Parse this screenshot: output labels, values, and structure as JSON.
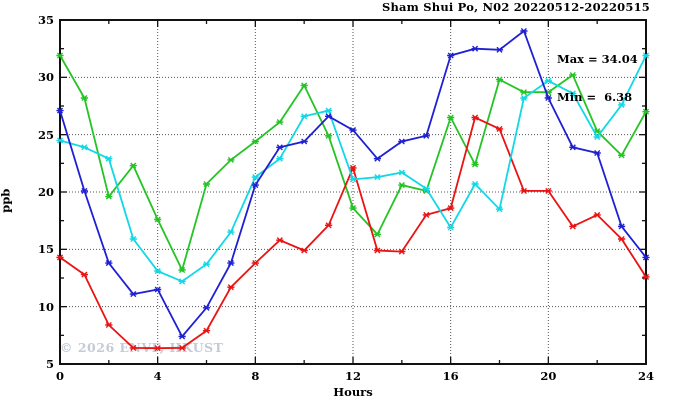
{
  "title": "Sham Shui Po, N02 20220512-20220515",
  "stats": {
    "max_label": "Max = 34.04",
    "min_label": "Min =  6.38"
  },
  "watermark": "© 2026 ENVF, HKUST",
  "axes": {
    "ylabel": "ppb",
    "xlabel": "Hours"
  },
  "chart_data": {
    "type": "line",
    "title": "Sham Shui Po, N02 20220512-20220515",
    "xlabel": "Hours",
    "ylabel": "ppb",
    "xlim": [
      0,
      24
    ],
    "ylim": [
      5,
      35
    ],
    "xticks_major": [
      0,
      4,
      8,
      12,
      16,
      20,
      24
    ],
    "xticks_minor": [
      2,
      6,
      10,
      14,
      18,
      22
    ],
    "yticks_major": [
      5,
      10,
      15,
      20,
      25,
      30,
      35
    ],
    "yticks_minor": [
      7.5,
      12.5,
      17.5,
      22.5,
      27.5,
      32.5
    ],
    "grid_x": [
      4,
      8,
      12,
      16,
      20
    ],
    "grid_y": [
      10,
      15,
      20,
      25,
      30
    ],
    "grid": true,
    "legend_position": "none",
    "max": 34.04,
    "min": 6.38,
    "x": [
      0,
      1,
      2,
      3,
      4,
      5,
      6,
      7,
      8,
      9,
      10,
      11,
      12,
      13,
      14,
      15,
      16,
      17,
      18,
      19,
      20,
      21,
      22,
      23,
      24
    ],
    "series": [
      {
        "name": "green",
        "color": "#24c424",
        "values": [
          31.9,
          28.2,
          19.6,
          22.3,
          17.6,
          13.2,
          20.7,
          22.8,
          24.4,
          26.1,
          29.3,
          24.9,
          18.6,
          16.3,
          20.6,
          20.1,
          26.5,
          22.4,
          29.8,
          28.7,
          28.7,
          30.2,
          25.3,
          23.2,
          27.0
        ]
      },
      {
        "name": "red",
        "color": "#ea1212",
        "values": [
          14.3,
          12.8,
          8.4,
          6.4,
          6.38,
          6.4,
          7.9,
          11.7,
          13.8,
          15.8,
          14.9,
          17.1,
          22.1,
          14.9,
          14.8,
          18.0,
          18.6,
          26.5,
          25.5,
          20.1,
          20.1,
          17.0,
          18.0,
          15.9,
          12.6
        ]
      },
      {
        "name": "cyan",
        "color": "#12d8e6",
        "values": [
          24.5,
          23.9,
          22.9,
          15.9,
          13.1,
          12.2,
          13.7,
          16.5,
          21.3,
          22.9,
          26.6,
          27.1,
          21.1,
          21.3,
          21.7,
          20.3,
          16.9,
          20.7,
          18.5,
          28.2,
          29.7,
          28.6,
          24.8,
          27.6,
          31.9
        ]
      },
      {
        "name": "blue",
        "color": "#1f1fd4",
        "values": [
          27.1,
          20.1,
          13.8,
          11.1,
          11.5,
          7.4,
          9.9,
          13.8,
          20.6,
          23.9,
          24.4,
          26.6,
          25.4,
          22.9,
          24.4,
          24.9,
          31.9,
          32.5,
          32.4,
          34.04,
          28.2,
          23.9,
          23.4,
          17.0,
          14.3
        ]
      }
    ]
  },
  "style": {
    "grid_color": "#555555",
    "axis_color": "#111111",
    "text_color": "#000000",
    "background": "#ffffff"
  }
}
